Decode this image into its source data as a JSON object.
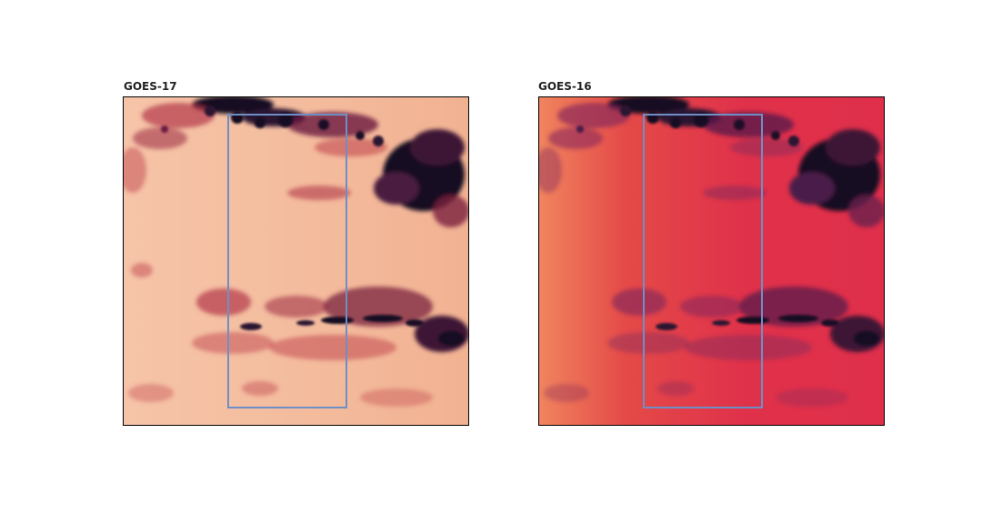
{
  "panels": [
    {
      "title": "GOES-17",
      "colormap": "rocket",
      "background_color": "#f4b898",
      "cloud_colors": [
        "#7a1f3d",
        "#3d1634",
        "#120b22"
      ],
      "box_color": "#6d8fc6"
    },
    {
      "title": "GOES-16",
      "colormap": "rocket",
      "background_color": "#e0314a",
      "cloud_colors": [
        "#8a2a5a",
        "#4a1a4a",
        "#120b22"
      ],
      "box_color": "#6d8fc6"
    }
  ]
}
